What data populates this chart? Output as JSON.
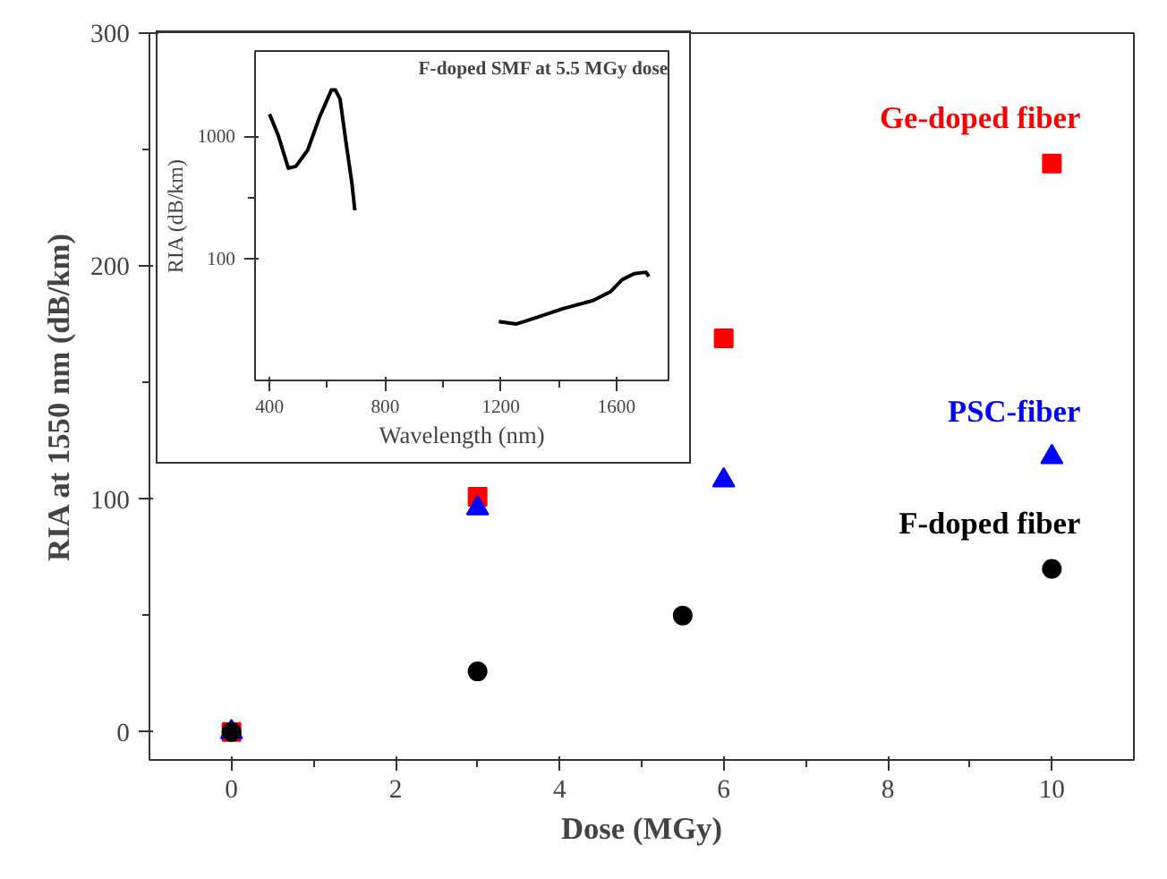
{
  "chart_data": [
    {
      "type": "scatter",
      "xlabel": "Dose (MGy)",
      "ylabel": "RIA at 1550 nm (dB/km)",
      "xlim": [
        -1,
        11
      ],
      "ylim": [
        -12,
        300
      ],
      "xticks": [
        0,
        2,
        4,
        6,
        8,
        10
      ],
      "yticks": [
        0,
        100,
        200,
        300
      ],
      "grid": false,
      "series": [
        {
          "name": "Ge-doped fiber",
          "color": "#ff0000",
          "marker": "square",
          "x": [
            0,
            3,
            6,
            10
          ],
          "values": [
            0,
            101,
            169,
            244
          ]
        },
        {
          "name": "PSC-fiber",
          "color": "#0000ff",
          "marker": "triangle",
          "x": [
            0,
            3,
            6,
            10
          ],
          "values": [
            0,
            96,
            108,
            118
          ]
        },
        {
          "name": "F-doped fiber",
          "color": "#000000",
          "marker": "circle",
          "x": [
            0,
            3,
            5.5,
            10
          ],
          "values": [
            0,
            26,
            50,
            70
          ]
        }
      ]
    },
    {
      "type": "line",
      "xlabel": "Wavelength (nm)",
      "ylabel": "RIA (dB/km)",
      "annotations": [
        "F-doped SMF at 5.5 MGy dose"
      ],
      "log": "y",
      "xlim": [
        350,
        1780
      ],
      "ylim": [
        10,
        5000
      ],
      "xticks": [
        400,
        800,
        1200,
        1600
      ],
      "yticks": [
        100,
        1000
      ],
      "grid": false,
      "marker": "none",
      "line_style": "solid",
      "series": [
        {
          "color": "#000000",
          "x": [
            400,
            430,
            465,
            491,
            532,
            573,
            614,
            628,
            644,
            664,
            685,
            695
          ],
          "values": [
            1520,
            1020,
            548,
            567,
            770,
            1437,
            2395,
            2395,
            2020,
            913,
            413,
            248
          ]
        },
        {
          "color": "#000000",
          "x": [
            1193,
            1254,
            1315,
            1417,
            1519,
            1580,
            1620,
            1661,
            1702,
            1712
          ],
          "values": [
            30.4,
            29,
            32.3,
            38.9,
            45.1,
            53.5,
            67,
            75,
            77,
            71
          ]
        }
      ]
    }
  ]
}
